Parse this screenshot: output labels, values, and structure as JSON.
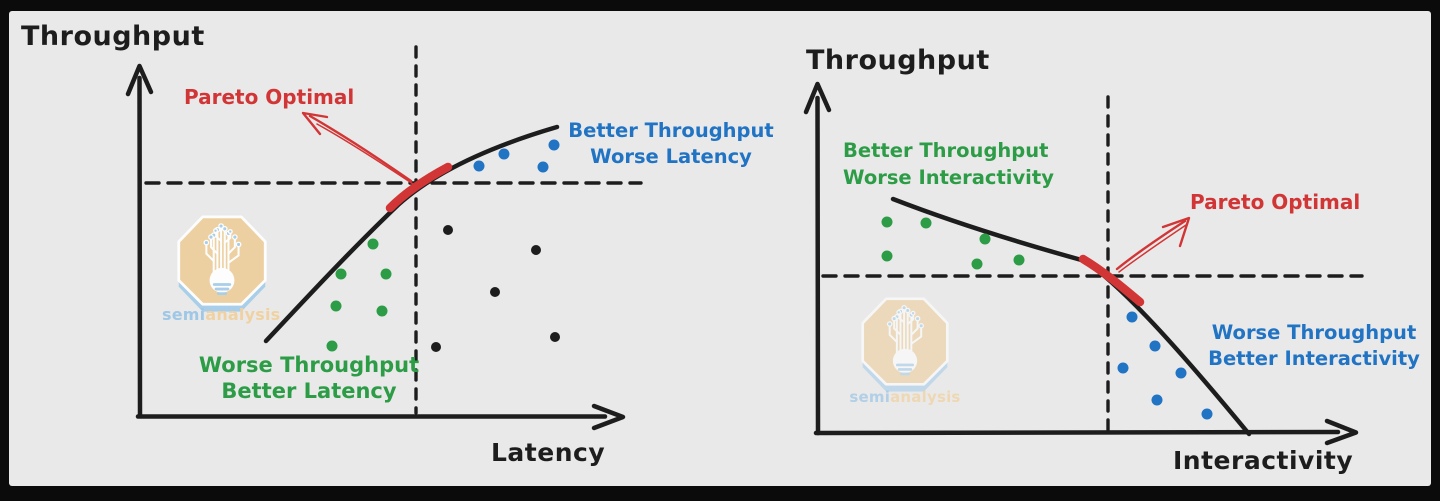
{
  "panel": {
    "background": "#e9e9e9",
    "frame": "#0b0b0b"
  },
  "colors": {
    "ink": "#1d1d1d",
    "red": "#d23535",
    "green": "#2d9c46",
    "blue": "#2173c4",
    "logo_tan": "#eecf9e",
    "logo_blue": "#a5cde9"
  },
  "logo": {
    "brand_semi": "semi",
    "brand_analysis": "analysis"
  },
  "charts": [
    {
      "y_axis_label": "Throughput",
      "x_axis_label": "Latency",
      "pareto_label": "Pareto Optimal",
      "upper_label_line1": "Better Throughput",
      "upper_label_line2": "Worse Latency",
      "lower_label_line1": "Worse Throughput",
      "lower_label_line2": "Better Latency",
      "dots": {
        "green": {
          "color": "#2d9c46",
          "r": 5.5,
          "points": [
            [
              373,
              244
            ],
            [
              341,
              274
            ],
            [
              386,
              274
            ],
            [
              336,
              306
            ],
            [
              382,
              311
            ],
            [
              332,
              346
            ]
          ]
        },
        "blue": {
          "color": "#2173c4",
          "r": 5.5,
          "points": [
            [
              479,
              166
            ],
            [
              504,
              154
            ],
            [
              554,
              145
            ],
            [
              543,
              167
            ]
          ]
        },
        "black": {
          "color": "#1d1d1d",
          "r": 5,
          "points": [
            [
              448,
              230
            ],
            [
              536,
              250
            ],
            [
              495,
              292
            ],
            [
              555,
              337
            ],
            [
              436,
              347
            ]
          ]
        }
      }
    },
    {
      "y_axis_label": "Throughput",
      "x_axis_label": "Interactivity",
      "pareto_label": "Pareto Optimal",
      "upper_label_line1": "Better Throughput",
      "upper_label_line2": "Worse Interactivity",
      "lower_label_line1": "Worse Throughput",
      "lower_label_line2": "Better Interactivity",
      "dots": {
        "green": {
          "color": "#2d9c46",
          "r": 5.5,
          "points": [
            [
              887,
              222
            ],
            [
              926,
              223
            ],
            [
              985,
              239
            ],
            [
              887,
              256
            ],
            [
              977,
              264
            ],
            [
              1019,
              260
            ]
          ]
        },
        "blue": {
          "color": "#2173c4",
          "r": 5.5,
          "points": [
            [
              1132,
              317
            ],
            [
              1155,
              346
            ],
            [
              1123,
              368
            ],
            [
              1181,
              373
            ],
            [
              1157,
              400
            ],
            [
              1207,
              414
            ]
          ]
        },
        "black": {
          "color": "#1d1d1d",
          "r": 5,
          "points": []
        }
      }
    }
  ]
}
